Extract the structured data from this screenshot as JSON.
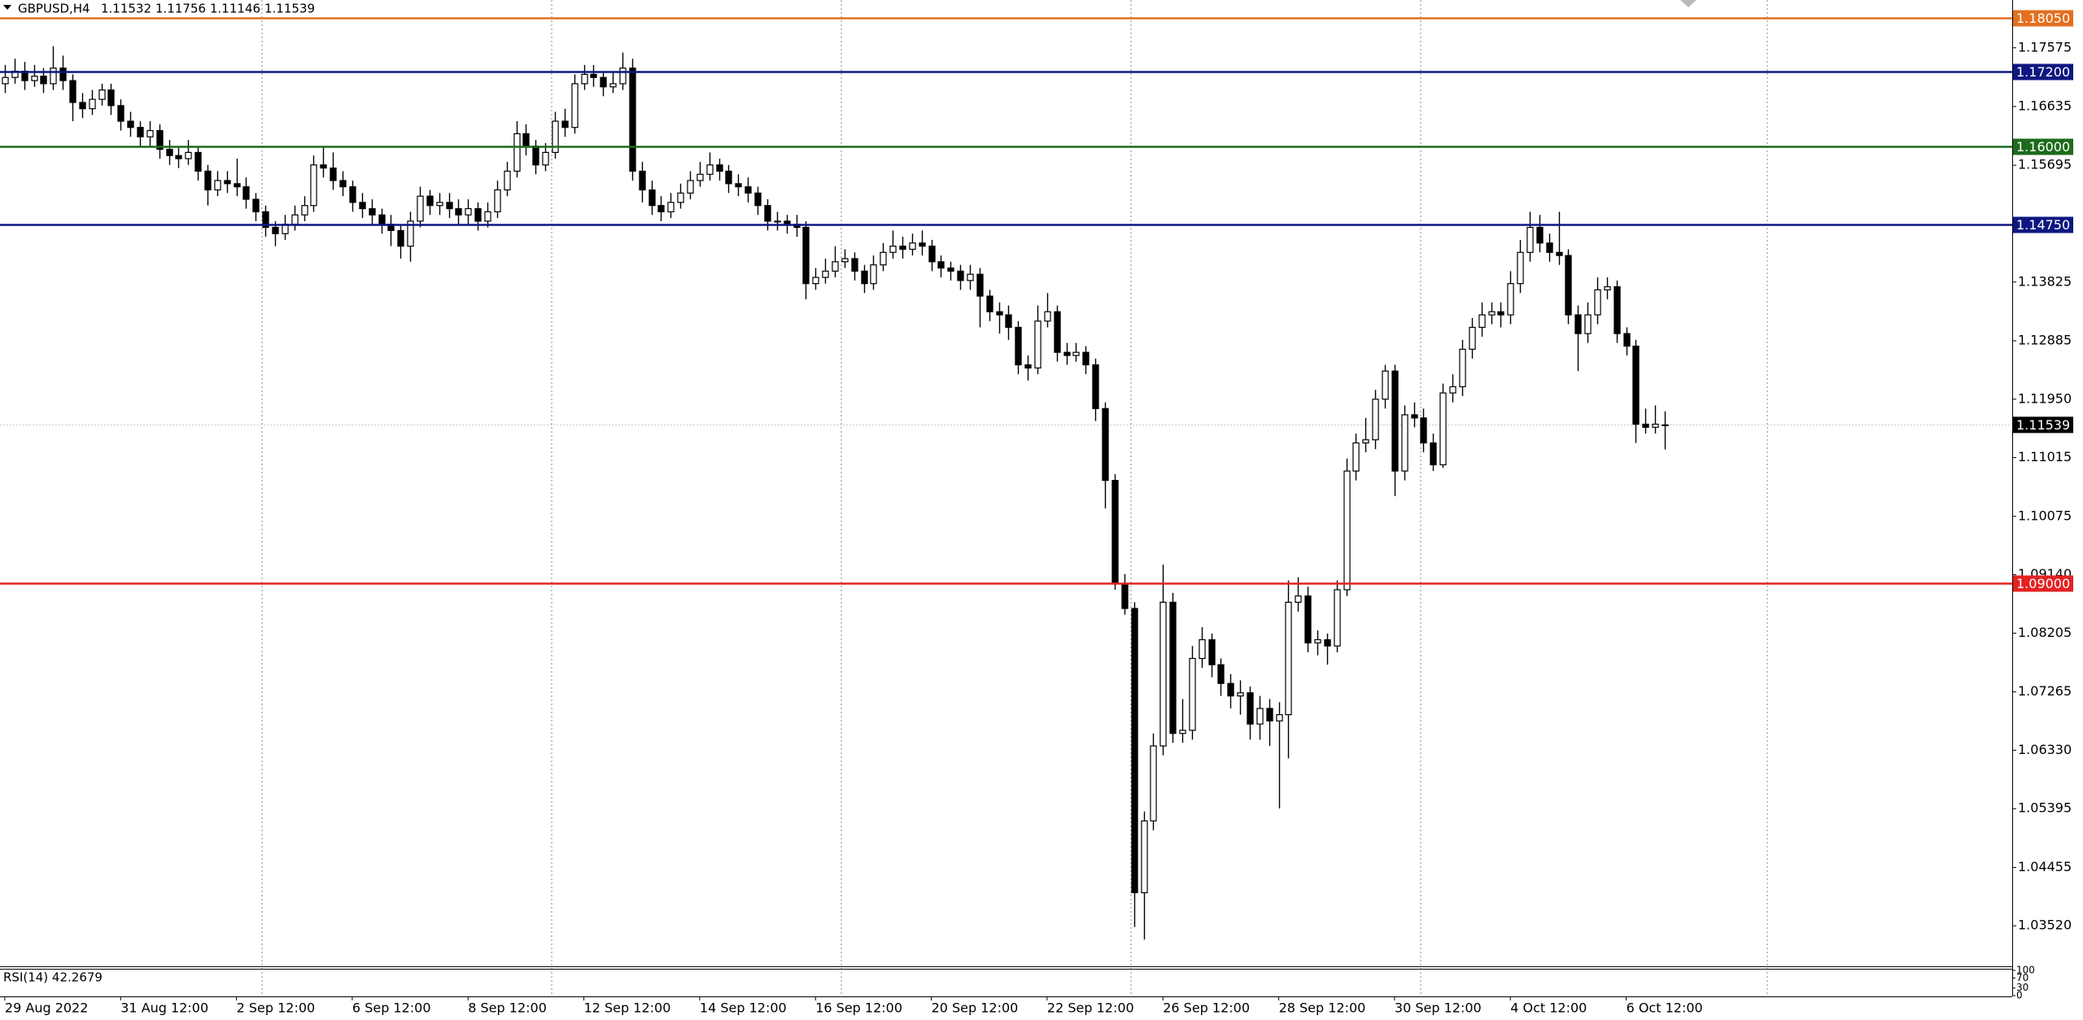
{
  "chart_data": {
    "type": "candlestick",
    "title": "GBPUSD,H4",
    "open": [
      1.17,
      1.171,
      1.172,
      1.1705,
      1.1712,
      1.17,
      1.1725,
      1.1705,
      1.167,
      1.166,
      1.1675,
      1.169,
      1.1665,
      1.164,
      1.163,
      1.1615,
      1.1625,
      1.1595,
      1.1585,
      1.158,
      1.159,
      1.156,
      1.153,
      1.1545,
      1.154,
      1.1535,
      1.1515,
      1.1495,
      1.147,
      1.146,
      1.1475,
      1.149,
      1.1505,
      1.157,
      1.1565,
      1.1545,
      1.1535,
      1.151,
      1.15,
      1.149,
      1.1475,
      1.1465,
      1.144,
      1.148,
      1.152,
      1.1505,
      1.151,
      1.15,
      1.149,
      1.15,
      1.148,
      1.1495,
      1.153,
      1.156,
      1.162,
      1.16,
      1.157,
      1.159,
      1.164,
      1.163,
      1.17,
      1.1715,
      1.171,
      1.1695,
      1.17,
      1.1725,
      1.156,
      1.153,
      1.1505,
      1.1495,
      1.151,
      1.1525,
      1.1545,
      1.1555,
      1.157,
      1.156,
      1.154,
      1.1535,
      1.1525,
      1.1505,
      1.148,
      1.148,
      1.1475,
      1.147,
      1.138,
      1.139,
      1.14,
      1.1415,
      1.142,
      1.14,
      1.138,
      1.141,
      1.143,
      1.144,
      1.1435,
      1.1445,
      1.144,
      1.1415,
      1.1405,
      1.14,
      1.1385,
      1.1395,
      1.136,
      1.1335,
      1.133,
      1.131,
      1.125,
      1.1245,
      1.132,
      1.1335,
      1.127,
      1.1265,
      1.127,
      1.125,
      1.118,
      1.1065,
      1.09,
      1.086,
      1.0405,
      1.052,
      1.064,
      1.087,
      1.066,
      1.0665,
      1.078,
      1.081,
      1.077,
      1.074,
      1.072,
      1.0725,
      1.0675,
      1.07,
      1.068,
      1.069,
      1.087,
      1.088,
      1.0805,
      1.081,
      1.08,
      1.089,
      1.108,
      1.1125,
      1.113,
      1.1195,
      1.124,
      1.108,
      1.117,
      1.1165,
      1.1125,
      1.109,
      1.1205,
      1.1215,
      1.1275,
      1.131,
      1.133,
      1.1335,
      1.133,
      1.138,
      1.143,
      1.147,
      1.1445,
      1.143,
      1.1425,
      1.133,
      1.13,
      1.133,
      1.137,
      1.1375,
      1.13,
      1.128,
      1.1155,
      1.115,
      1.11532
    ],
    "high": [
      1.173,
      1.174,
      1.1735,
      1.173,
      1.1725,
      1.176,
      1.1745,
      1.1715,
      1.1685,
      1.169,
      1.17,
      1.17,
      1.1675,
      1.1655,
      1.164,
      1.164,
      1.1635,
      1.161,
      1.16,
      1.161,
      1.16,
      1.157,
      1.156,
      1.156,
      1.158,
      1.155,
      1.1525,
      1.1505,
      1.148,
      1.149,
      1.1505,
      1.152,
      1.1585,
      1.16,
      1.159,
      1.156,
      1.1545,
      1.1525,
      1.1515,
      1.15,
      1.149,
      1.1475,
      1.1495,
      1.1535,
      1.153,
      1.1525,
      1.1525,
      1.1515,
      1.1515,
      1.151,
      1.151,
      1.1545,
      1.1575,
      1.164,
      1.1635,
      1.161,
      1.1605,
      1.1655,
      1.166,
      1.1715,
      1.173,
      1.173,
      1.172,
      1.172,
      1.175,
      1.174,
      1.1575,
      1.1545,
      1.152,
      1.1525,
      1.154,
      1.156,
      1.1575,
      1.159,
      1.158,
      1.157,
      1.1555,
      1.155,
      1.1535,
      1.1515,
      1.1495,
      1.149,
      1.149,
      1.148,
      1.1405,
      1.142,
      1.144,
      1.1435,
      1.143,
      1.141,
      1.1425,
      1.1445,
      1.1465,
      1.1455,
      1.146,
      1.1465,
      1.145,
      1.1425,
      1.1415,
      1.141,
      1.141,
      1.1405,
      1.137,
      1.135,
      1.1345,
      1.132,
      1.1265,
      1.1345,
      1.1365,
      1.1345,
      1.1285,
      1.1285,
      1.128,
      1.126,
      1.119,
      1.1075,
      1.0915,
      1.087,
      1.0535,
      1.066,
      1.093,
      1.0885,
      1.0715,
      1.08,
      1.083,
      1.082,
      1.078,
      1.0755,
      1.0745,
      1.0735,
      1.072,
      1.0715,
      1.071,
      1.0905,
      1.091,
      1.0895,
      1.0825,
      1.082,
      1.0905,
      1.11,
      1.114,
      1.1165,
      1.121,
      1.125,
      1.125,
      1.1185,
      1.119,
      1.118,
      1.114,
      1.122,
      1.1235,
      1.129,
      1.1325,
      1.135,
      1.135,
      1.135,
      1.14,
      1.145,
      1.1495,
      1.149,
      1.146,
      1.1495,
      1.1435,
      1.1345,
      1.135,
      1.139,
      1.139,
      1.1385,
      1.131,
      1.129,
      1.118,
      1.1185,
      1.11756
    ],
    "low": [
      1.1685,
      1.17,
      1.169,
      1.1695,
      1.1685,
      1.169,
      1.169,
      1.164,
      1.1645,
      1.165,
      1.1665,
      1.165,
      1.1625,
      1.1615,
      1.16,
      1.16,
      1.158,
      1.157,
      1.1565,
      1.157,
      1.1545,
      1.1505,
      1.152,
      1.1525,
      1.152,
      1.15,
      1.148,
      1.1455,
      1.144,
      1.145,
      1.1465,
      1.148,
      1.1495,
      1.155,
      1.153,
      1.152,
      1.1495,
      1.1485,
      1.1475,
      1.146,
      1.144,
      1.142,
      1.1415,
      1.147,
      1.149,
      1.149,
      1.1485,
      1.1475,
      1.1475,
      1.1465,
      1.147,
      1.1485,
      1.152,
      1.155,
      1.1585,
      1.1555,
      1.156,
      1.158,
      1.1615,
      1.162,
      1.169,
      1.1695,
      1.168,
      1.1685,
      1.169,
      1.1545,
      1.151,
      1.149,
      1.148,
      1.1485,
      1.15,
      1.1515,
      1.1535,
      1.1545,
      1.1545,
      1.1525,
      1.152,
      1.151,
      1.149,
      1.1465,
      1.1465,
      1.146,
      1.1455,
      1.1355,
      1.137,
      1.138,
      1.139,
      1.1405,
      1.1385,
      1.1365,
      1.137,
      1.14,
      1.142,
      1.142,
      1.1425,
      1.1425,
      1.14,
      1.139,
      1.1385,
      1.137,
      1.137,
      1.131,
      1.132,
      1.13,
      1.129,
      1.1235,
      1.1225,
      1.1235,
      1.131,
      1.1255,
      1.125,
      1.1255,
      1.1235,
      1.116,
      1.102,
      1.089,
      1.085,
      1.035,
      1.033,
      1.0505,
      1.0625,
      1.0645,
      1.0645,
      1.065,
      1.0765,
      1.075,
      1.072,
      1.07,
      1.069,
      1.065,
      1.065,
      1.064,
      1.054,
      1.062,
      1.0855,
      1.079,
      1.0785,
      1.077,
      1.079,
      1.088,
      1.1065,
      1.111,
      1.1115,
      1.118,
      1.104,
      1.1065,
      1.115,
      1.111,
      1.108,
      1.1085,
      1.119,
      1.12,
      1.126,
      1.1295,
      1.1315,
      1.131,
      1.1315,
      1.1365,
      1.1415,
      1.143,
      1.1415,
      1.141,
      1.1315,
      1.124,
      1.1285,
      1.1315,
      1.1355,
      1.1285,
      1.1265,
      1.1125,
      1.114,
      1.114,
      1.11146
    ],
    "close": [
      1.171,
      1.172,
      1.1705,
      1.1712,
      1.17,
      1.1725,
      1.1705,
      1.167,
      1.166,
      1.1675,
      1.169,
      1.1665,
      1.164,
      1.163,
      1.1615,
      1.1625,
      1.1595,
      1.1585,
      1.158,
      1.159,
      1.156,
      1.153,
      1.1545,
      1.154,
      1.1535,
      1.1515,
      1.1495,
      1.147,
      1.146,
      1.1475,
      1.149,
      1.1505,
      1.157,
      1.1565,
      1.1545,
      1.1535,
      1.151,
      1.15,
      1.149,
      1.1475,
      1.1465,
      1.144,
      1.148,
      1.152,
      1.1505,
      1.151,
      1.15,
      1.149,
      1.15,
      1.148,
      1.1495,
      1.153,
      1.156,
      1.162,
      1.16,
      1.157,
      1.159,
      1.164,
      1.163,
      1.17,
      1.1715,
      1.171,
      1.1695,
      1.17,
      1.1725,
      1.156,
      1.153,
      1.1505,
      1.1495,
      1.151,
      1.1525,
      1.1545,
      1.1555,
      1.157,
      1.156,
      1.154,
      1.1535,
      1.1525,
      1.1505,
      1.148,
      1.148,
      1.1475,
      1.147,
      1.138,
      1.139,
      1.14,
      1.1415,
      1.142,
      1.14,
      1.138,
      1.141,
      1.143,
      1.144,
      1.1435,
      1.1445,
      1.144,
      1.1415,
      1.1405,
      1.14,
      1.1385,
      1.1395,
      1.136,
      1.1335,
      1.133,
      1.131,
      1.125,
      1.1245,
      1.132,
      1.1335,
      1.127,
      1.1265,
      1.127,
      1.125,
      1.118,
      1.1065,
      1.09,
      1.086,
      1.0405,
      1.052,
      1.064,
      1.087,
      1.066,
      1.0665,
      1.078,
      1.081,
      1.077,
      1.074,
      1.072,
      1.0725,
      1.0675,
      1.07,
      1.068,
      1.069,
      1.087,
      1.088,
      1.0805,
      1.081,
      1.08,
      1.089,
      1.108,
      1.1125,
      1.113,
      1.1195,
      1.124,
      1.108,
      1.117,
      1.1165,
      1.1125,
      1.109,
      1.1205,
      1.1215,
      1.1275,
      1.131,
      1.133,
      1.1335,
      1.133,
      1.138,
      1.143,
      1.147,
      1.1445,
      1.143,
      1.1425,
      1.133,
      1.13,
      1.133,
      1.137,
      1.1375,
      1.13,
      1.128,
      1.1155,
      1.115,
      1.1155,
      1.11539
    ],
    "xlim": [
      -0.5,
      208
    ],
    "ylim": [
      1.02885,
      1.1834
    ],
    "xticks": [
      {
        "value": 0,
        "label": "29 Aug 2022"
      },
      {
        "value": 12,
        "label": "31 Aug 12:00"
      },
      {
        "value": 24,
        "label": "2 Sep 12:00"
      },
      {
        "value": 36,
        "label": "6 Sep 12:00"
      },
      {
        "value": 48,
        "label": "8 Sep 12:00"
      },
      {
        "value": 60,
        "label": "12 Sep 12:00"
      },
      {
        "value": 72,
        "label": "14 Sep 12:00"
      },
      {
        "value": 84,
        "label": "16 Sep 12:00"
      },
      {
        "value": 96,
        "label": "20 Sep 12:00"
      },
      {
        "value": 108,
        "label": "22 Sep 12:00"
      },
      {
        "value": 120,
        "label": "26 Sep 12:00"
      },
      {
        "value": 132,
        "label": "28 Sep 12:00"
      },
      {
        "value": 144,
        "label": "30 Sep 12:00"
      },
      {
        "value": 156,
        "label": "4 Oct 12:00"
      },
      {
        "value": 168,
        "label": "6 Oct 12:00"
      }
    ],
    "yticks": [
      {
        "value": 1.17575,
        "label": "1.17575"
      },
      {
        "value": 1.16635,
        "label": "1.16635"
      },
      {
        "value": 1.15695,
        "label": "1.15695"
      },
      {
        "value": 1.1476,
        "label": "1.14760"
      },
      {
        "value": 1.13825,
        "label": "1.13825"
      },
      {
        "value": 1.12885,
        "label": "1.12885"
      },
      {
        "value": 1.1195,
        "label": "1.11950"
      },
      {
        "value": 1.11015,
        "label": "1.11015"
      },
      {
        "value": 1.10075,
        "label": "1.10075"
      },
      {
        "value": 1.0914,
        "label": "1.09140"
      },
      {
        "value": 1.08205,
        "label": "1.08205"
      },
      {
        "value": 1.07265,
        "label": "1.07265"
      },
      {
        "value": 1.0633,
        "label": "1.06330"
      },
      {
        "value": 1.05395,
        "label": "1.05395"
      },
      {
        "value": 1.04455,
        "label": "1.04455"
      },
      {
        "value": 1.0352,
        "label": "1.03520"
      }
    ],
    "levels": [
      {
        "value": 1.1805,
        "label": "1.18050",
        "color": "#e2701f"
      },
      {
        "value": 1.172,
        "label": "1.17200",
        "color": "#0e1780"
      },
      {
        "value": 1.16,
        "label": "1.16000",
        "color": "#1d6b1d"
      },
      {
        "value": 1.1475,
        "label": "1.14750",
        "color": "#0e1780"
      },
      {
        "value": 1.09,
        "label": "1.09000",
        "color": "#e32222"
      }
    ],
    "last_price": {
      "value": 1.11539,
      "label": "1.11539",
      "color": "#000000"
    },
    "bull_color": "#ffffff",
    "bear_color": "#000000",
    "indicator": {
      "label": "RSI(14) 42.2679",
      "ylim": [
        0,
        100
      ],
      "yticks": [
        100,
        70,
        30,
        0
      ]
    }
  }
}
